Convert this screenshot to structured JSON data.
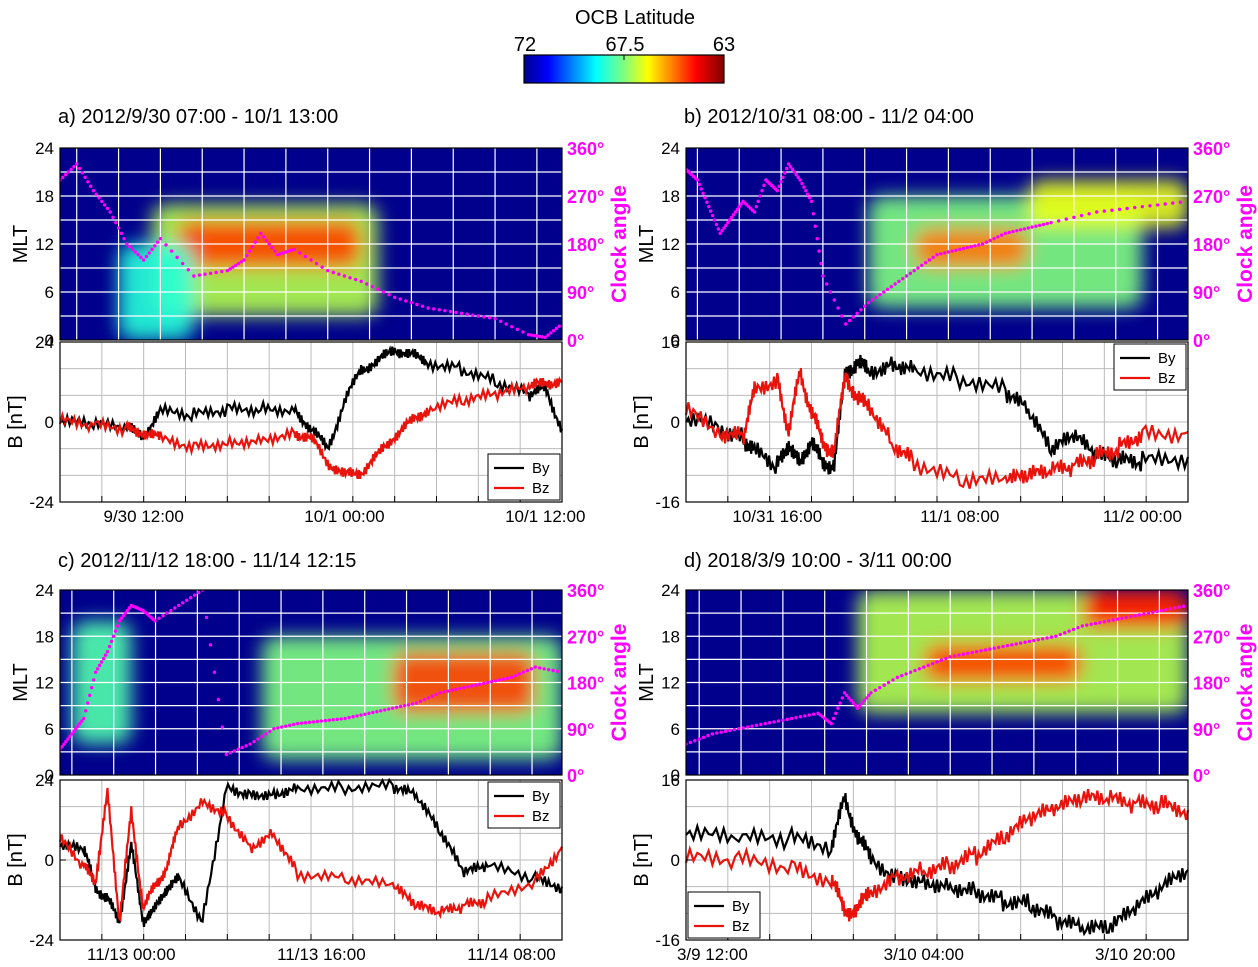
{
  "colorbar": {
    "title": "OCB Latitude",
    "ticks": [
      "72",
      "67.5",
      "63"
    ]
  },
  "colors": {
    "by": "#000000",
    "bz": "#e8140c",
    "clock": "#ff00ff",
    "grid_spec": "#ffffff",
    "grid_line": "#bbbbbb",
    "background": "#00008c"
  },
  "y_axis_labels": {
    "mlt": "MLT",
    "b": "B [nT]",
    "clock": "Clock angle"
  },
  "mlt_ticks": [
    "24",
    "18",
    "12",
    "6",
    "0"
  ],
  "clock_ticks": [
    "360°",
    "270°",
    "180°",
    "90°",
    "0°"
  ],
  "legend": {
    "by": "By",
    "bz": "Bz"
  },
  "chart_data": [
    {
      "type": "line",
      "title": "a) 2012/9/30 07:00 - 10/1 13:00",
      "x_time_ticks": [
        "9/30 12:00",
        "10/1 00:00",
        "10/1 12:00"
      ],
      "b_ylim": [
        -24,
        24
      ],
      "b_tick_labels": [
        "24",
        "0",
        "-24"
      ],
      "series": [
        {
          "name": "By",
          "x_hours": [
            0,
            2,
            4,
            5,
            6,
            8,
            10,
            12,
            14,
            15,
            16,
            17,
            18,
            19,
            20,
            21,
            22,
            24,
            26,
            28,
            29,
            30
          ],
          "values": [
            0,
            -1,
            -2,
            -4,
            3,
            2,
            4,
            4,
            4,
            -2,
            -8,
            6,
            16,
            18,
            22,
            20,
            18,
            16,
            12,
            8,
            10,
            -2
          ]
        },
        {
          "name": "Bz",
          "x_hours": [
            0,
            2,
            4,
            5,
            6,
            8,
            10,
            12,
            14,
            15,
            16,
            17,
            18,
            19,
            20,
            21,
            22,
            24,
            26,
            28,
            29,
            30
          ],
          "values": [
            0,
            -1,
            -2,
            -3,
            -5,
            -7,
            -6,
            -5,
            -3,
            -5,
            -12,
            -16,
            -15,
            -10,
            -4,
            0,
            4,
            6,
            8,
            10,
            12,
            12
          ]
        },
        {
          "name": "Clock angle",
          "x_hours": [
            0,
            1,
            2,
            3,
            4,
            5,
            6,
            8,
            10,
            11,
            12,
            13,
            14,
            16,
            18,
            20,
            22,
            24,
            26,
            28,
            29,
            30
          ],
          "values": [
            300,
            330,
            280,
            240,
            180,
            150,
            190,
            120,
            130,
            150,
            200,
            160,
            170,
            130,
            110,
            80,
            60,
            50,
            40,
            10,
            5,
            30
          ]
        }
      ],
      "ocb_zones": [
        {
          "x_range": [
            5.5,
            19
          ],
          "mlt_range": [
            3,
            17
          ],
          "level": 0.55
        },
        {
          "x_range": [
            7,
            18
          ],
          "mlt_range": [
            9,
            15
          ],
          "level": 0.8
        },
        {
          "x_range": [
            3.5,
            8
          ],
          "mlt_range": [
            0,
            12
          ],
          "level": 0.4
        }
      ]
    },
    {
      "type": "line",
      "title": "b) 2012/10/31 08:00 - 11/2 04:00",
      "x_time_ticks": [
        "10/31 16:00",
        "11/1 08:00",
        "11/2 00:00"
      ],
      "b_ylim": [
        -16,
        16
      ],
      "b_tick_labels": [
        "16",
        "0",
        "-16"
      ],
      "series": [
        {
          "name": "By",
          "x_hours": [
            0,
            3,
            5,
            6,
            8,
            9,
            10,
            11,
            12,
            13,
            14,
            15,
            16,
            18,
            20,
            24,
            28,
            30,
            32,
            34,
            36,
            38,
            40,
            44
          ],
          "values": [
            0,
            -1,
            -3,
            -6,
            -9,
            -4,
            -9,
            -3,
            -9,
            -8,
            10,
            12,
            10,
            12,
            11,
            9,
            6,
            2,
            -6,
            -3,
            -7,
            -8,
            -8,
            -7
          ]
        },
        {
          "name": "Bz",
          "x_hours": [
            0,
            3,
            5,
            6,
            8,
            9,
            10,
            11,
            12,
            13,
            14,
            15,
            16,
            18,
            20,
            24,
            28,
            30,
            32,
            34,
            36,
            38,
            40,
            44
          ],
          "values": [
            2,
            -2,
            -3,
            6,
            9,
            -2,
            10,
            2,
            -4,
            -6,
            10,
            4,
            4,
            -4,
            -8,
            -12,
            -12,
            -11,
            -10,
            -9,
            -7,
            -5,
            -2,
            -2
          ]
        },
        {
          "name": "Clock angle",
          "x_hours": [
            0,
            1,
            2,
            3,
            4,
            5,
            6,
            7,
            8,
            9,
            10,
            11,
            12,
            14,
            16,
            18,
            20,
            22,
            24,
            26,
            28,
            30,
            32,
            36,
            40,
            44
          ],
          "values": [
            320,
            300,
            250,
            200,
            230,
            260,
            240,
            300,
            280,
            330,
            300,
            260,
            120,
            30,
            70,
            100,
            130,
            160,
            170,
            180,
            200,
            210,
            220,
            240,
            250,
            260
          ]
        }
      ],
      "ocb_zones": [
        {
          "x_range": [
            16,
            40
          ],
          "mlt_range": [
            4,
            18
          ],
          "level": 0.5
        },
        {
          "x_range": [
            20,
            30
          ],
          "mlt_range": [
            9,
            14
          ],
          "level": 0.75
        },
        {
          "x_range": [
            30,
            44
          ],
          "mlt_range": [
            14,
            20
          ],
          "level": 0.6
        }
      ]
    },
    {
      "type": "line",
      "title": "c) 2012/11/12 18:00 - 11/14 12:15",
      "x_time_ticks": [
        "11/13 00:00",
        "11/13 16:00",
        "11/14 08:00"
      ],
      "b_ylim": [
        -24,
        24
      ],
      "b_tick_labels": [
        "24",
        "0",
        "-24"
      ],
      "series": [
        {
          "name": "By",
          "x_hours": [
            0,
            2,
            3,
            4,
            5,
            6,
            7,
            8,
            9,
            10,
            12,
            14,
            16,
            18,
            20,
            24,
            28,
            30,
            32,
            34,
            36,
            40,
            42.25
          ],
          "values": [
            4,
            3,
            -8,
            -12,
            -18,
            4,
            -18,
            -15,
            -8,
            -6,
            -18,
            22,
            20,
            20,
            22,
            22,
            22,
            19,
            8,
            -4,
            -2,
            -6,
            -8
          ]
        },
        {
          "name": "Bz",
          "x_hours": [
            0,
            2,
            3,
            4,
            5,
            6,
            7,
            8,
            9,
            10,
            12,
            14,
            16,
            18,
            20,
            24,
            28,
            30,
            32,
            34,
            36,
            40,
            42.25
          ],
          "values": [
            6,
            -2,
            -6,
            20,
            -18,
            14,
            -14,
            -8,
            -2,
            10,
            18,
            14,
            4,
            8,
            -4,
            -6,
            -8,
            -14,
            -16,
            -14,
            -12,
            -6,
            4
          ]
        },
        {
          "name": "Clock angle",
          "x_hours": [
            0,
            1,
            2,
            3,
            4,
            5,
            6,
            7,
            8,
            10,
            12,
            14,
            16,
            18,
            20,
            22,
            24,
            26,
            28,
            30,
            32,
            34,
            36,
            38,
            40,
            42.25
          ],
          "values": [
            50,
            80,
            110,
            200,
            240,
            300,
            330,
            320,
            300,
            330,
            360,
            40,
            60,
            90,
            100,
            105,
            110,
            120,
            130,
            140,
            160,
            170,
            180,
            190,
            210,
            200
          ]
        }
      ],
      "ocb_zones": [
        {
          "x_range": [
            17,
            42.25
          ],
          "mlt_range": [
            2,
            18
          ],
          "level": 0.5
        },
        {
          "x_range": [
            28,
            40
          ],
          "mlt_range": [
            8,
            16
          ],
          "level": 0.8
        },
        {
          "x_range": [
            1,
            6
          ],
          "mlt_range": [
            4,
            20
          ],
          "level": 0.45
        }
      ]
    },
    {
      "type": "line",
      "title": "d) 2018/3/9 10:00 - 3/11 00:00",
      "x_time_ticks": [
        "3/9 12:00",
        "3/10 04:00",
        "3/10 20:00"
      ],
      "b_ylim": [
        -16,
        16
      ],
      "b_tick_labels": [
        "16",
        "0",
        "-16"
      ],
      "series": [
        {
          "name": "By",
          "x_hours": [
            0,
            4,
            8,
            11,
            12,
            13,
            14,
            16,
            18,
            20,
            22,
            24,
            26,
            28,
            30,
            32,
            34,
            36,
            38
          ],
          "values": [
            5,
            4,
            4,
            3,
            12,
            5,
            0,
            -3,
            -4,
            -5,
            -6,
            -8,
            -9,
            -12,
            -14,
            -14,
            -10,
            -6,
            -2
          ]
        },
        {
          "name": "Bz",
          "x_hours": [
            0,
            4,
            8,
            11,
            12,
            13,
            14,
            16,
            18,
            20,
            22,
            24,
            26,
            28,
            30,
            32,
            34,
            36,
            38
          ],
          "values": [
            0,
            0,
            -1,
            -4,
            -10,
            -10,
            -6,
            -3,
            -2,
            -1,
            1,
            4,
            8,
            10,
            12,
            12,
            11,
            11,
            10
          ]
        },
        {
          "name": "Clock angle",
          "x_hours": [
            0,
            2,
            4,
            6,
            8,
            10,
            11,
            12,
            13,
            14,
            16,
            18,
            20,
            22,
            24,
            26,
            28,
            30,
            32,
            34,
            36,
            38
          ],
          "values": [
            60,
            80,
            90,
            100,
            110,
            120,
            100,
            160,
            130,
            160,
            190,
            210,
            230,
            240,
            250,
            260,
            270,
            290,
            300,
            310,
            320,
            330
          ]
        }
      ],
      "ocb_zones": [
        {
          "x_range": [
            13,
            38
          ],
          "mlt_range": [
            8,
            24
          ],
          "level": 0.55
        },
        {
          "x_range": [
            18,
            30
          ],
          "mlt_range": [
            12,
            17
          ],
          "level": 0.8
        },
        {
          "x_range": [
            30,
            38
          ],
          "mlt_range": [
            19,
            24
          ],
          "level": 0.85
        }
      ]
    }
  ]
}
